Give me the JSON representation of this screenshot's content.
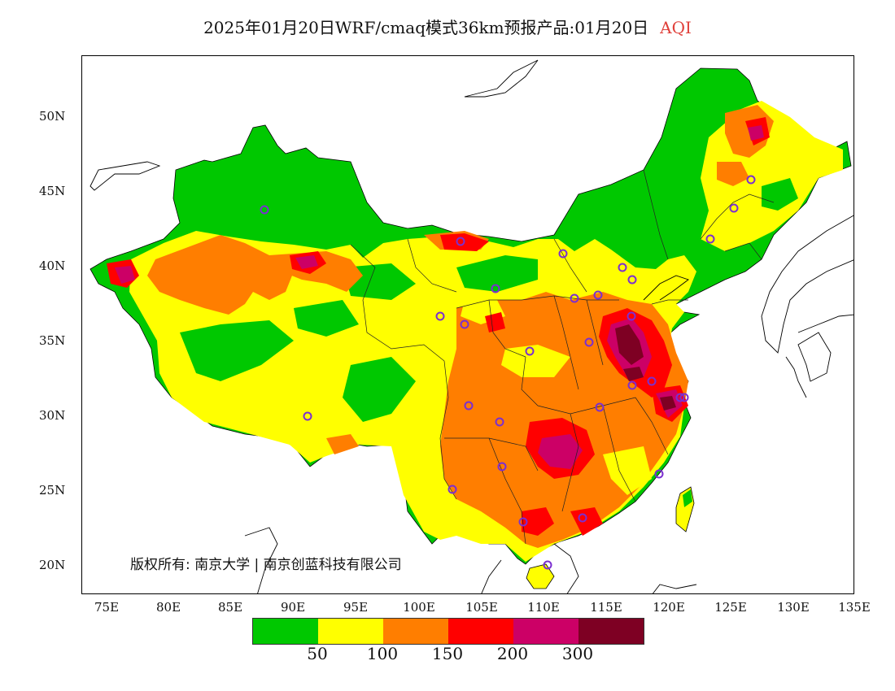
{
  "title": {
    "main": "2025年01月20日WRF/cmaq模式36km预报产品:01月20日",
    "product": "AQI"
  },
  "copyright": "版权所有: 南京大学 | 南京创蓝科技有限公司",
  "axes": {
    "lat_labels": [
      "50N",
      "45N",
      "40N",
      "35N",
      "30N",
      "25N",
      "20N"
    ],
    "lon_labels": [
      "75E",
      "80E",
      "85E",
      "90E",
      "95E",
      "100E",
      "105E",
      "110E",
      "115E",
      "120E",
      "125E",
      "130E",
      "135E"
    ]
  },
  "legend": {
    "colors": [
      "#00c800",
      "#ffff00",
      "#ff7e00",
      "#ff0000",
      "#cc0066",
      "#7e0023"
    ],
    "labels": [
      "50",
      "100",
      "150",
      "200",
      "300"
    ]
  },
  "colors": {
    "background": "#ffffff",
    "border": "#000000",
    "station": "#7b2fd0"
  }
}
